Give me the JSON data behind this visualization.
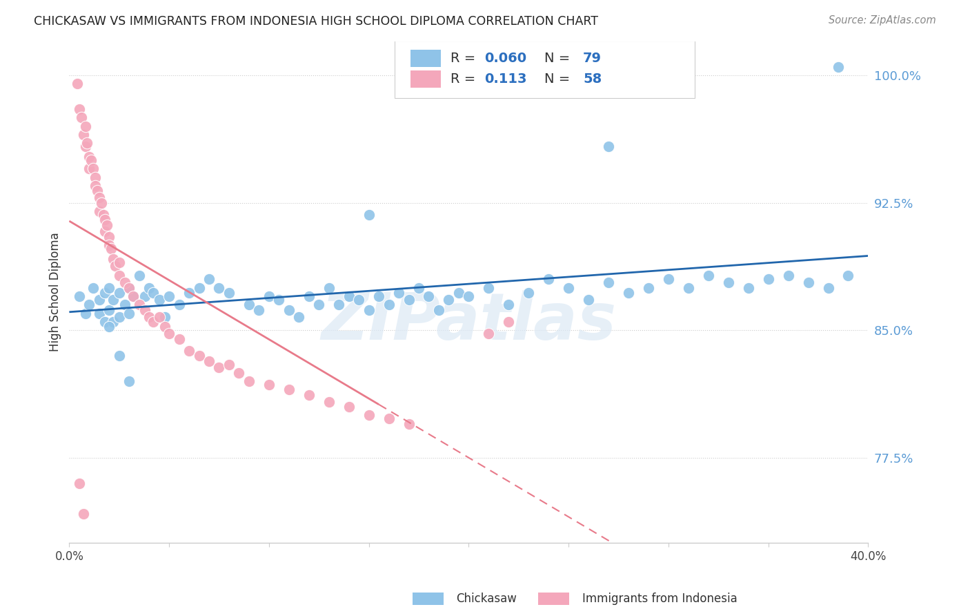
{
  "title": "CHICKASAW VS IMMIGRANTS FROM INDONESIA HIGH SCHOOL DIPLOMA CORRELATION CHART",
  "source": "Source: ZipAtlas.com",
  "ylabel": "High School Diploma",
  "ytick_labels": [
    "77.5%",
    "85.0%",
    "92.5%",
    "100.0%"
  ],
  "ytick_values": [
    0.775,
    0.85,
    0.925,
    1.0
  ],
  "xlim": [
    0.0,
    0.4
  ],
  "ylim": [
    0.725,
    1.02
  ],
  "watermark": "ZIPatlas",
  "color_blue": "#8fc3e8",
  "color_pink": "#f4a7bb",
  "trendline_blue_color": "#2166ac",
  "trendline_pink_color": "#e87a8a",
  "blue_r": "0.060",
  "blue_n": "79",
  "pink_r": "0.113",
  "pink_n": "58",
  "blue_x": [
    0.005,
    0.008,
    0.01,
    0.012,
    0.015,
    0.015,
    0.018,
    0.018,
    0.02,
    0.02,
    0.022,
    0.022,
    0.025,
    0.025,
    0.028,
    0.03,
    0.03,
    0.032,
    0.035,
    0.038,
    0.04,
    0.042,
    0.045,
    0.048,
    0.05,
    0.055,
    0.06,
    0.065,
    0.07,
    0.075,
    0.08,
    0.09,
    0.095,
    0.1,
    0.105,
    0.11,
    0.115,
    0.12,
    0.125,
    0.13,
    0.135,
    0.14,
    0.145,
    0.15,
    0.155,
    0.16,
    0.165,
    0.17,
    0.175,
    0.18,
    0.185,
    0.19,
    0.195,
    0.2,
    0.21,
    0.22,
    0.23,
    0.24,
    0.25,
    0.26,
    0.27,
    0.28,
    0.29,
    0.3,
    0.31,
    0.32,
    0.33,
    0.34,
    0.35,
    0.36,
    0.37,
    0.38,
    0.39,
    0.27,
    0.15,
    0.02,
    0.025,
    0.03,
    0.385
  ],
  "blue_y": [
    0.87,
    0.86,
    0.865,
    0.875,
    0.868,
    0.86,
    0.872,
    0.855,
    0.875,
    0.862,
    0.868,
    0.855,
    0.872,
    0.858,
    0.865,
    0.875,
    0.86,
    0.87,
    0.882,
    0.87,
    0.875,
    0.872,
    0.868,
    0.858,
    0.87,
    0.865,
    0.872,
    0.875,
    0.88,
    0.875,
    0.872,
    0.865,
    0.862,
    0.87,
    0.868,
    0.862,
    0.858,
    0.87,
    0.865,
    0.875,
    0.865,
    0.87,
    0.868,
    0.862,
    0.87,
    0.865,
    0.872,
    0.868,
    0.875,
    0.87,
    0.862,
    0.868,
    0.872,
    0.87,
    0.875,
    0.865,
    0.872,
    0.88,
    0.875,
    0.868,
    0.878,
    0.872,
    0.875,
    0.88,
    0.875,
    0.882,
    0.878,
    0.875,
    0.88,
    0.882,
    0.878,
    0.875,
    0.882,
    0.958,
    0.918,
    0.852,
    0.835,
    0.82,
    1.005
  ],
  "pink_x": [
    0.004,
    0.005,
    0.006,
    0.007,
    0.008,
    0.008,
    0.009,
    0.01,
    0.01,
    0.011,
    0.012,
    0.013,
    0.013,
    0.014,
    0.015,
    0.015,
    0.016,
    0.017,
    0.018,
    0.018,
    0.019,
    0.02,
    0.02,
    0.021,
    0.022,
    0.023,
    0.025,
    0.025,
    0.028,
    0.03,
    0.032,
    0.035,
    0.038,
    0.04,
    0.042,
    0.045,
    0.048,
    0.05,
    0.055,
    0.06,
    0.065,
    0.07,
    0.075,
    0.08,
    0.085,
    0.09,
    0.1,
    0.11,
    0.12,
    0.13,
    0.14,
    0.15,
    0.16,
    0.17,
    0.005,
    0.007,
    0.21,
    0.22
  ],
  "pink_y": [
    0.995,
    0.98,
    0.975,
    0.965,
    0.97,
    0.958,
    0.96,
    0.952,
    0.945,
    0.95,
    0.945,
    0.94,
    0.935,
    0.932,
    0.928,
    0.92,
    0.925,
    0.918,
    0.915,
    0.908,
    0.912,
    0.905,
    0.9,
    0.898,
    0.892,
    0.888,
    0.89,
    0.882,
    0.878,
    0.875,
    0.87,
    0.865,
    0.862,
    0.858,
    0.855,
    0.858,
    0.852,
    0.848,
    0.845,
    0.838,
    0.835,
    0.832,
    0.828,
    0.83,
    0.825,
    0.82,
    0.818,
    0.815,
    0.812,
    0.808,
    0.805,
    0.8,
    0.798,
    0.795,
    0.76,
    0.742,
    0.848,
    0.855
  ]
}
